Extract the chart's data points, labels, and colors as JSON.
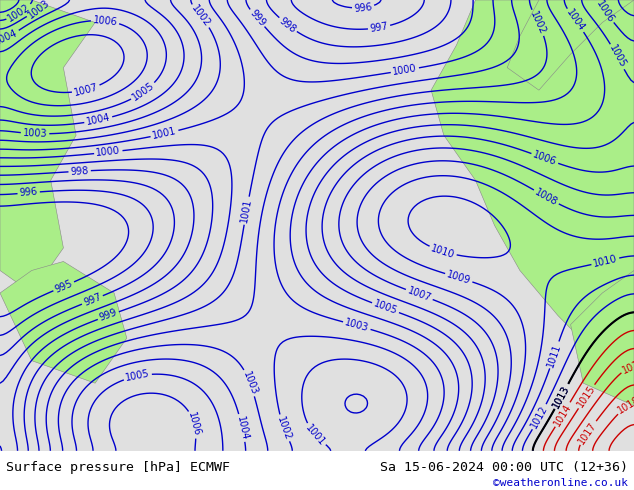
{
  "title_left": "Surface pressure [hPa] ECMWF",
  "title_right": "Sa 15-06-2024 00:00 UTC (12+36)",
  "credit": "©weatheronline.co.uk",
  "figsize": [
    6.34,
    4.9
  ],
  "dpi": 100,
  "bg_color": "#d0d0d0",
  "land_color_green": "#aaee88",
  "land_color_gray": "#e8e8e8",
  "sea_color": "#e8e8e8",
  "isobar_color_blue": "#0000cc",
  "isobar_color_red": "#cc0000",
  "isobar_color_black": "#000000",
  "bottom_bar_color": "#ffffff",
  "title_fontsize": 10,
  "credit_color": "#0000cc",
  "pressure_min": 994,
  "pressure_max": 1020,
  "pressure_step": 1
}
